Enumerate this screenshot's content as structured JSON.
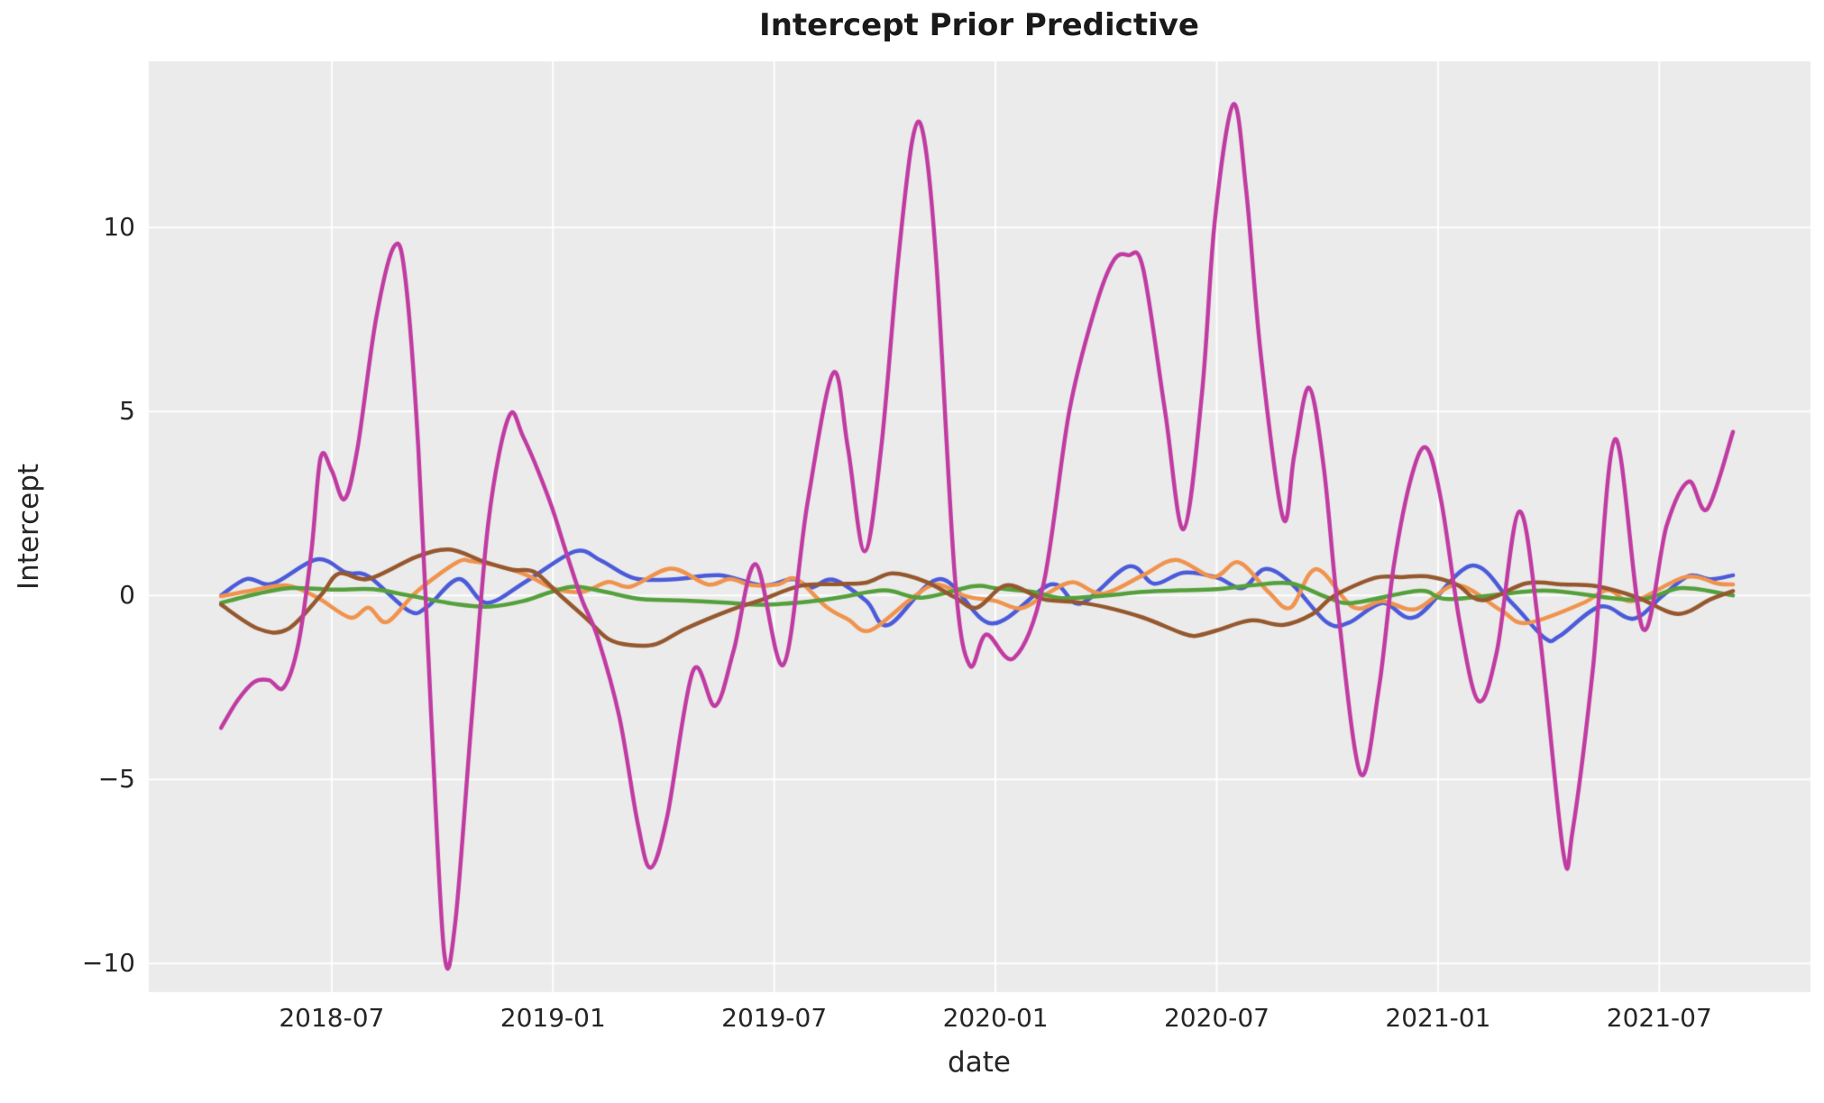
{
  "title": "Intercept Prior Predictive",
  "style": {
    "plot_bg": "#EBEBEB",
    "grid_color": "#FFFFFF",
    "text_color": "#262626",
    "line_width": 4.5
  },
  "chart_data": {
    "type": "line",
    "title": "Intercept Prior Predictive",
    "xlabel": "date",
    "ylabel": "Intercept",
    "x_unit": "months_since_2018-04",
    "xlim_t": [
      -1.96,
      43.1
    ],
    "ylim": [
      -10.78,
      14.52
    ],
    "grid": true,
    "legend": false,
    "x_ticks": [
      {
        "t": 3,
        "label": "2018-07"
      },
      {
        "t": 9,
        "label": "2019-01"
      },
      {
        "t": 15,
        "label": "2019-07"
      },
      {
        "t": 21,
        "label": "2020-01"
      },
      {
        "t": 27,
        "label": "2020-07"
      },
      {
        "t": 33,
        "label": "2021-01"
      },
      {
        "t": 39,
        "label": "2021-07"
      }
    ],
    "y_ticks": [
      {
        "v": 10,
        "label": "10"
      },
      {
        "v": 5,
        "label": "5"
      },
      {
        "v": 0,
        "label": "0"
      },
      {
        "v": -5,
        "label": "−5"
      },
      {
        "v": -10,
        "label": "−10"
      }
    ],
    "series": [
      {
        "name": "prior-draw-blue",
        "color": "#4C5BD9",
        "points": [
          [
            0,
            0.0
          ],
          [
            0.7,
            0.45
          ],
          [
            1.4,
            0.32
          ],
          [
            2.6,
            0.98
          ],
          [
            3.4,
            0.62
          ],
          [
            4.0,
            0.52
          ],
          [
            5.1,
            -0.42
          ],
          [
            5.6,
            -0.3
          ],
          [
            6.45,
            0.45
          ],
          [
            7.2,
            -0.2
          ],
          [
            8.3,
            0.4
          ],
          [
            9.6,
            1.2
          ],
          [
            10.3,
            0.95
          ],
          [
            11.2,
            0.47
          ],
          [
            12.3,
            0.44
          ],
          [
            13.5,
            0.55
          ],
          [
            14.7,
            0.27
          ],
          [
            15.5,
            0.45
          ],
          [
            16.0,
            0.22
          ],
          [
            16.6,
            0.43
          ],
          [
            17.5,
            -0.15
          ],
          [
            18.1,
            -0.8
          ],
          [
            19.5,
            0.45
          ],
          [
            20.9,
            -0.76
          ],
          [
            22.5,
            0.3
          ],
          [
            23.3,
            -0.22
          ],
          [
            24.6,
            0.79
          ],
          [
            25.3,
            0.32
          ],
          [
            26.1,
            0.62
          ],
          [
            27.0,
            0.49
          ],
          [
            27.7,
            0.2
          ],
          [
            28.3,
            0.72
          ],
          [
            29.0,
            0.35
          ],
          [
            30.0,
            -0.74
          ],
          [
            30.6,
            -0.73
          ],
          [
            31.5,
            -0.2
          ],
          [
            32.4,
            -0.58
          ],
          [
            33.9,
            0.81
          ],
          [
            35.0,
            -0.2
          ],
          [
            35.9,
            -1.16
          ],
          [
            36.3,
            -1.1
          ],
          [
            37.4,
            -0.3
          ],
          [
            38.3,
            -0.63
          ],
          [
            39.1,
            0.0
          ],
          [
            39.8,
            0.53
          ],
          [
            40.4,
            0.44
          ],
          [
            41,
            0.55
          ]
        ]
      },
      {
        "name": "prior-draw-orange",
        "color": "#F0934E",
        "points": [
          [
            0,
            -0.02
          ],
          [
            0.9,
            0.15
          ],
          [
            1.8,
            0.27
          ],
          [
            2.6,
            -0.05
          ],
          [
            3.5,
            -0.6
          ],
          [
            4.0,
            -0.33
          ],
          [
            4.5,
            -0.72
          ],
          [
            5.3,
            0.1
          ],
          [
            6.4,
            0.9
          ],
          [
            6.8,
            0.93
          ],
          [
            7.4,
            0.83
          ],
          [
            8.3,
            0.55
          ],
          [
            9.0,
            0.2
          ],
          [
            9.8,
            0.1
          ],
          [
            10.5,
            0.37
          ],
          [
            11.1,
            0.24
          ],
          [
            12.2,
            0.73
          ],
          [
            13.2,
            0.3
          ],
          [
            13.8,
            0.45
          ],
          [
            14.4,
            0.28
          ],
          [
            15.1,
            0.3
          ],
          [
            15.6,
            0.45
          ],
          [
            16.4,
            -0.3
          ],
          [
            17.0,
            -0.65
          ],
          [
            17.6,
            -0.95
          ],
          [
            18.7,
            -0.1
          ],
          [
            19.4,
            0.3
          ],
          [
            20.2,
            -0.02
          ],
          [
            21.0,
            -0.15
          ],
          [
            21.7,
            -0.35
          ],
          [
            22.4,
            0.05
          ],
          [
            23.1,
            0.36
          ],
          [
            23.9,
            0.05
          ],
          [
            25.0,
            0.55
          ],
          [
            25.9,
            0.97
          ],
          [
            26.9,
            0.5
          ],
          [
            27.6,
            0.9
          ],
          [
            28.4,
            0.1
          ],
          [
            29.0,
            -0.33
          ],
          [
            29.7,
            0.72
          ],
          [
            30.7,
            -0.32
          ],
          [
            31.5,
            -0.15
          ],
          [
            32.4,
            -0.37
          ],
          [
            33.5,
            0.28
          ],
          [
            34.7,
            -0.4
          ],
          [
            35.4,
            -0.75
          ],
          [
            36.9,
            -0.22
          ],
          [
            37.6,
            0.15
          ],
          [
            38.3,
            -0.15
          ],
          [
            39.7,
            0.5
          ],
          [
            40.6,
            0.32
          ],
          [
            41,
            0.3
          ]
        ]
      },
      {
        "name": "prior-draw-green",
        "color": "#55A03C",
        "points": [
          [
            0,
            -0.2
          ],
          [
            1.0,
            0.05
          ],
          [
            1.9,
            0.2
          ],
          [
            3.0,
            0.16
          ],
          [
            4.1,
            0.17
          ],
          [
            5.0,
            0.02
          ],
          [
            6.4,
            -0.24
          ],
          [
            7.3,
            -0.3
          ],
          [
            8.2,
            -0.15
          ],
          [
            8.9,
            0.08
          ],
          [
            9.6,
            0.24
          ],
          [
            10.5,
            0.08
          ],
          [
            11.4,
            -0.1
          ],
          [
            12.6,
            -0.14
          ],
          [
            13.8,
            -0.2
          ],
          [
            14.7,
            -0.25
          ],
          [
            15.9,
            -0.17
          ],
          [
            16.8,
            -0.05
          ],
          [
            18.0,
            0.14
          ],
          [
            19.0,
            -0.06
          ],
          [
            20.4,
            0.25
          ],
          [
            21.0,
            0.2
          ],
          [
            22.0,
            0.1
          ],
          [
            22.8,
            -0.07
          ],
          [
            24.0,
            0.0
          ],
          [
            25.0,
            0.1
          ],
          [
            26.0,
            0.14
          ],
          [
            27.0,
            0.17
          ],
          [
            28.0,
            0.28
          ],
          [
            29.0,
            0.33
          ],
          [
            30.0,
            -0.05
          ],
          [
            30.7,
            -0.2
          ],
          [
            32.5,
            0.13
          ],
          [
            33.3,
            -0.1
          ],
          [
            35.5,
            0.12
          ],
          [
            36.4,
            0.1
          ],
          [
            38.4,
            -0.12
          ],
          [
            39.6,
            0.2
          ],
          [
            41,
            0.0
          ]
        ]
      },
      {
        "name": "prior-draw-brown",
        "color": "#96582F",
        "points": [
          [
            0,
            -0.25
          ],
          [
            1.0,
            -0.9
          ],
          [
            1.8,
            -0.92
          ],
          [
            2.7,
            0.0
          ],
          [
            3.2,
            0.6
          ],
          [
            4.0,
            0.45
          ],
          [
            5.3,
            1.05
          ],
          [
            6.2,
            1.25
          ],
          [
            7.1,
            0.93
          ],
          [
            7.9,
            0.7
          ],
          [
            8.5,
            0.64
          ],
          [
            9.2,
            0.0
          ],
          [
            9.9,
            -0.62
          ],
          [
            10.5,
            -1.18
          ],
          [
            11.1,
            -1.35
          ],
          [
            11.8,
            -1.32
          ],
          [
            12.6,
            -0.9
          ],
          [
            13.8,
            -0.4
          ],
          [
            14.6,
            -0.14
          ],
          [
            15.7,
            0.26
          ],
          [
            16.7,
            0.31
          ],
          [
            17.5,
            0.35
          ],
          [
            18.2,
            0.6
          ],
          [
            19.1,
            0.38
          ],
          [
            19.9,
            -0.05
          ],
          [
            20.5,
            -0.33
          ],
          [
            21.3,
            0.28
          ],
          [
            22.3,
            -0.1
          ],
          [
            23.2,
            -0.18
          ],
          [
            24.0,
            -0.32
          ],
          [
            25.0,
            -0.6
          ],
          [
            26.0,
            -1.0
          ],
          [
            26.4,
            -1.1
          ],
          [
            27.0,
            -0.95
          ],
          [
            27.7,
            -0.72
          ],
          [
            28.1,
            -0.68
          ],
          [
            28.8,
            -0.8
          ],
          [
            29.6,
            -0.5
          ],
          [
            30.2,
            0.0
          ],
          [
            31.3,
            0.48
          ],
          [
            32.0,
            0.5
          ],
          [
            32.7,
            0.52
          ],
          [
            33.5,
            0.3
          ],
          [
            34.2,
            -0.13
          ],
          [
            35.4,
            0.33
          ],
          [
            36.4,
            0.3
          ],
          [
            37.3,
            0.25
          ],
          [
            38.4,
            -0.05
          ],
          [
            39.5,
            -0.5
          ],
          [
            40.4,
            -0.1
          ],
          [
            41,
            0.12
          ]
        ]
      },
      {
        "name": "prior-draw-magenta",
        "color": "#C03BA2",
        "points": [
          [
            0,
            -3.6
          ],
          [
            0.45,
            -2.85
          ],
          [
            0.9,
            -2.35
          ],
          [
            1.3,
            -2.3
          ],
          [
            1.7,
            -2.5
          ],
          [
            2.1,
            -1.3
          ],
          [
            2.45,
            1.2
          ],
          [
            2.7,
            3.75
          ],
          [
            3.0,
            3.4
          ],
          [
            3.35,
            2.62
          ],
          [
            3.7,
            4.0
          ],
          [
            4.2,
            7.5
          ],
          [
            4.7,
            9.5
          ],
          [
            5.0,
            8.6
          ],
          [
            5.35,
            4.0
          ],
          [
            5.7,
            -3.3
          ],
          [
            6.05,
            -9.7
          ],
          [
            6.35,
            -8.9
          ],
          [
            6.8,
            -3.3
          ],
          [
            7.25,
            2.0
          ],
          [
            7.8,
            4.85
          ],
          [
            8.2,
            4.3
          ],
          [
            8.9,
            2.6
          ],
          [
            9.35,
            1.2
          ],
          [
            9.8,
            -0.15
          ],
          [
            10.2,
            -1.1
          ],
          [
            10.8,
            -3.3
          ],
          [
            11.3,
            -6.2
          ],
          [
            11.65,
            -7.4
          ],
          [
            12.1,
            -6.0
          ],
          [
            12.8,
            -2.05
          ],
          [
            13.4,
            -3.0
          ],
          [
            13.9,
            -1.5
          ],
          [
            14.5,
            0.85
          ],
          [
            15.25,
            -1.88
          ],
          [
            15.9,
            2.5
          ],
          [
            16.6,
            6.05
          ],
          [
            17.0,
            4.0
          ],
          [
            17.45,
            1.2
          ],
          [
            17.9,
            4.0
          ],
          [
            18.35,
            9.0
          ],
          [
            18.75,
            12.4
          ],
          [
            19.05,
            12.5
          ],
          [
            19.4,
            9.0
          ],
          [
            19.9,
            0.5
          ],
          [
            20.3,
            -1.9
          ],
          [
            20.75,
            -1.06
          ],
          [
            21.5,
            -1.7
          ],
          [
            22.3,
            0.3
          ],
          [
            23.0,
            5.0
          ],
          [
            23.7,
            7.8
          ],
          [
            24.2,
            9.1
          ],
          [
            24.6,
            9.25
          ],
          [
            25.0,
            8.9
          ],
          [
            25.6,
            5.0
          ],
          [
            26.1,
            1.8
          ],
          [
            26.6,
            5.5
          ],
          [
            26.95,
            10.2
          ],
          [
            27.45,
            13.35
          ],
          [
            27.8,
            11.0
          ],
          [
            28.2,
            6.5
          ],
          [
            28.8,
            2.1
          ],
          [
            29.1,
            3.8
          ],
          [
            29.5,
            5.65
          ],
          [
            29.9,
            3.5
          ],
          [
            30.3,
            -0.5
          ],
          [
            30.9,
            -4.85
          ],
          [
            31.4,
            -2.5
          ],
          [
            31.8,
            0.8
          ],
          [
            32.3,
            3.3
          ],
          [
            32.7,
            4.0
          ],
          [
            33.1,
            2.5
          ],
          [
            33.6,
            -0.8
          ],
          [
            34.1,
            -2.87
          ],
          [
            34.6,
            -1.5
          ],
          [
            35.2,
            2.28
          ],
          [
            35.75,
            -1.0
          ],
          [
            36.4,
            -7.0
          ],
          [
            36.65,
            -6.4
          ],
          [
            37.2,
            -2.0
          ],
          [
            37.8,
            4.25
          ],
          [
            38.55,
            -0.9
          ],
          [
            39.2,
            1.9
          ],
          [
            39.8,
            3.1
          ],
          [
            40.3,
            2.35
          ],
          [
            41,
            4.45
          ]
        ]
      }
    ]
  }
}
